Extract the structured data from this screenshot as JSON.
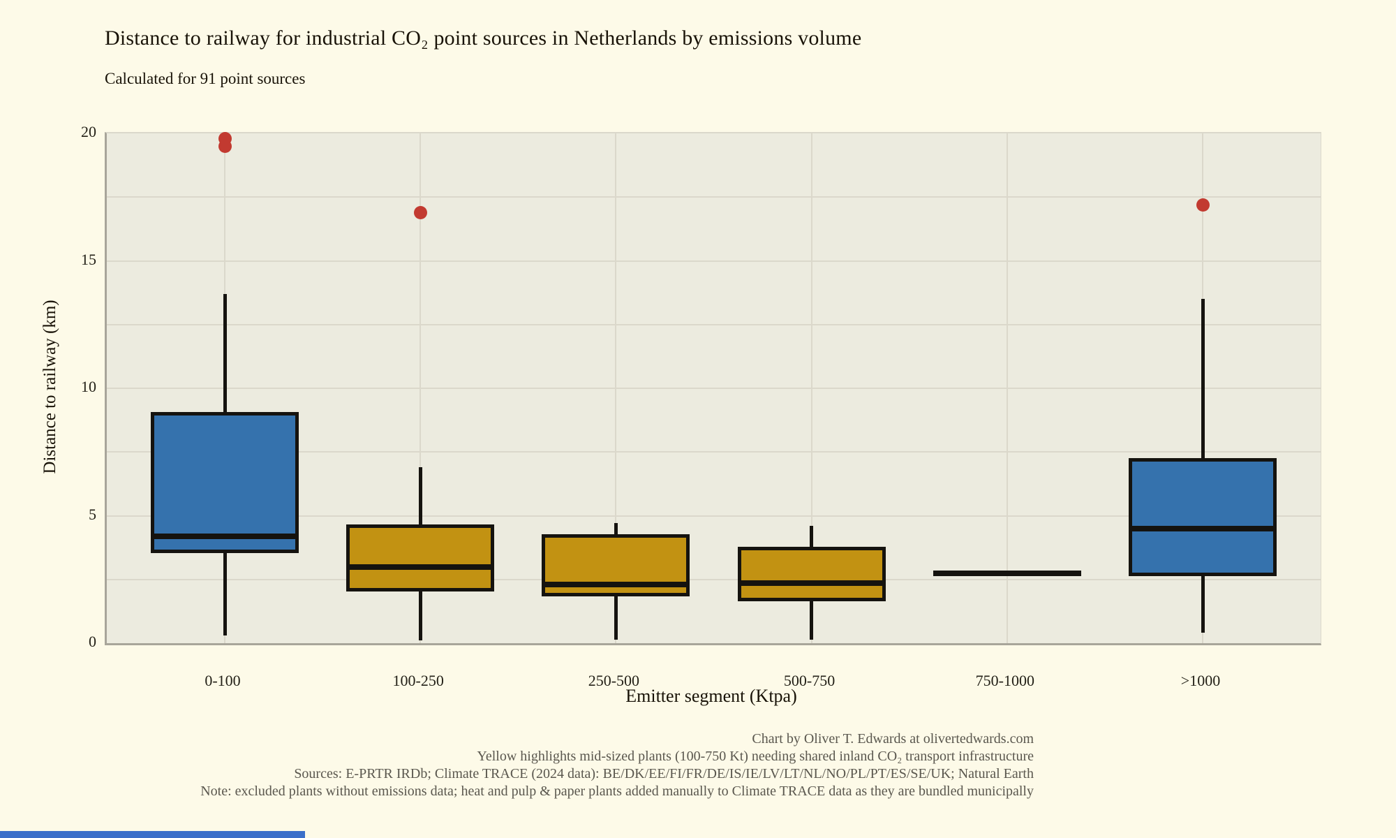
{
  "chart_data": {
    "type": "boxplot",
    "title": "Distance to railway for industrial CO₂ point sources in Netherlands by emissions volume",
    "subtitle": "Calculated for 91 point sources",
    "xlabel": "Emitter segment (Ktpa)",
    "ylabel": "Distance to railway (km)",
    "ylim": [
      0,
      20
    ],
    "yticks": [
      0,
      5,
      10,
      15,
      20
    ],
    "grid_step": 2.5,
    "grid": true,
    "legend": "none",
    "categories": [
      "0-100",
      "100-250",
      "250-500",
      "500-750",
      "750-1000",
      ">1000"
    ],
    "series": [
      {
        "category": "0-100",
        "color": "blue",
        "whisker_low": 0.3,
        "q1": 3.6,
        "median": 4.2,
        "q3": 9.0,
        "whisker_high": 13.7,
        "outliers": [
          19.5,
          19.8
        ]
      },
      {
        "category": "100-250",
        "color": "gold",
        "whisker_low": 0.1,
        "q1": 2.1,
        "median": 3.0,
        "q3": 4.6,
        "whisker_high": 6.9,
        "outliers": [
          16.9
        ]
      },
      {
        "category": "250-500",
        "color": "gold",
        "whisker_low": 0.15,
        "q1": 1.9,
        "median": 2.3,
        "q3": 4.2,
        "whisker_high": 4.7,
        "outliers": []
      },
      {
        "category": "500-750",
        "color": "gold",
        "whisker_low": 0.15,
        "q1": 1.7,
        "median": 2.35,
        "q3": 3.7,
        "whisker_high": 4.6,
        "outliers": []
      },
      {
        "category": "750-1000",
        "color": "gold",
        "whisker_low": 2.75,
        "q1": 2.75,
        "median": 2.75,
        "q3": 2.75,
        "whisker_high": 2.75,
        "outliers": []
      },
      {
        "category": ">1000",
        "color": "blue",
        "whisker_low": 0.4,
        "q1": 2.7,
        "median": 4.5,
        "q3": 7.2,
        "whisker_high": 13.5,
        "outliers": [
          17.2
        ]
      }
    ],
    "footer": [
      "Chart by Oliver T. Edwards at olivertedwards.com",
      "Yellow highlights mid-sized plants (100-750 Kt) needing shared inland CO₂ transport infrastructure",
      "Sources: E-PRTR IRDb; Climate TRACE (2024 data): BE/DK/EE/FI/FR/DE/IS/IE/LV/LT/NL/NO/PL/PT/ES/SE/UK; Natural Earth",
      "Note: excluded plants without emissions data; heat and pulp & paper plants added manually to Climate TRACE data as they are bundled municipally"
    ]
  },
  "colors": {
    "background": "#fdfae8",
    "plot_background": "#ecebdf",
    "gridline": "#dbd8cb",
    "axis_line": "#a8a59a",
    "box_blue": "#3572ad",
    "box_gold": "#c29212",
    "box_stroke": "#15130f",
    "median": "#15130f",
    "outlier_red": "#c23a30",
    "title_text": "#181207",
    "tick_text": "#232017",
    "footer_text": "#5a574e",
    "accent_bar_blue": "#3b6fc9"
  }
}
